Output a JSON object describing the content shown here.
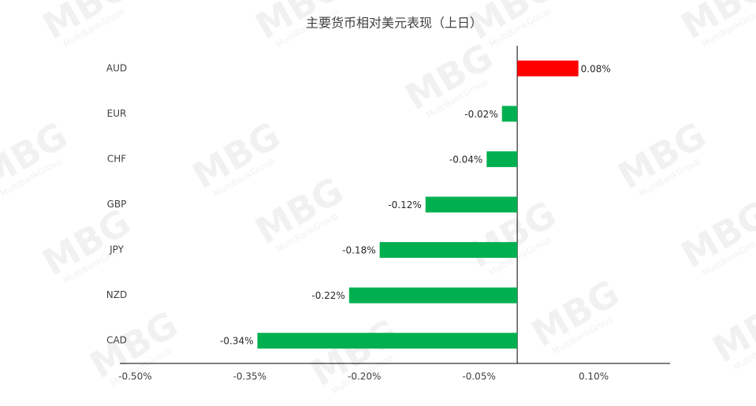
{
  "chart_data": {
    "type": "bar",
    "orientation": "horizontal",
    "title": "主要货币相对美元表现（上日）",
    "categories": [
      "AUD",
      "EUR",
      "CHF",
      "GBP",
      "JPY",
      "NZD",
      "CAD"
    ],
    "values": [
      0.08,
      -0.02,
      -0.04,
      -0.12,
      -0.18,
      -0.22,
      -0.34
    ],
    "value_labels": [
      "0.08%",
      "-0.02%",
      "-0.04%",
      "-0.12%",
      "-0.18%",
      "-0.22%",
      "-0.34%"
    ],
    "colors": [
      "#ff0000",
      "#00b050",
      "#00b050",
      "#00b050",
      "#00b050",
      "#00b050",
      "#00b050"
    ],
    "xlim": [
      -0.52,
      0.2
    ],
    "xticks": [
      {
        "value": -0.5,
        "label": "-0.50%"
      },
      {
        "value": -0.35,
        "label": "-0.35%"
      },
      {
        "value": -0.2,
        "label": "-0.20%"
      },
      {
        "value": -0.05,
        "label": "-0.05%"
      },
      {
        "value": 0.1,
        "label": "0.10%"
      }
    ],
    "grid": false,
    "watermark": "MBG",
    "watermark_sub": "MultiBankGroup"
  }
}
